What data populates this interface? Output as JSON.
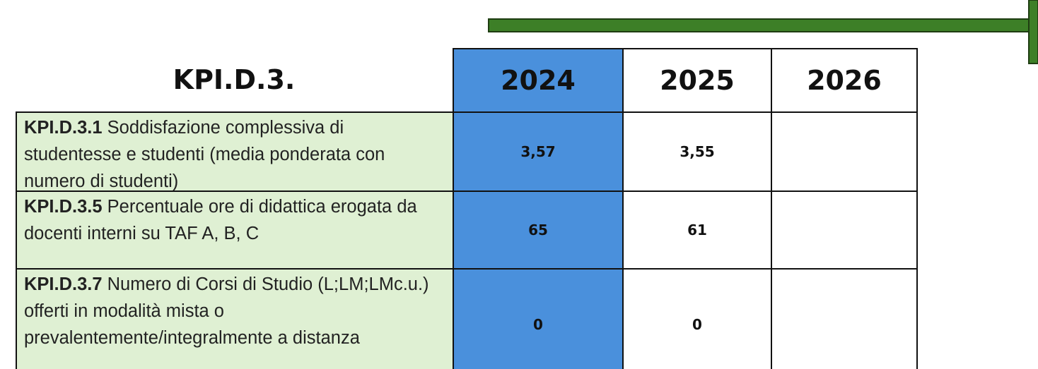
{
  "header": {
    "title": "KPI.D.3.",
    "years": [
      "2024",
      "2025",
      "2026"
    ]
  },
  "rows": [
    {
      "code": "KPI.D.3.1",
      "text": "Soddisfazione complessiva di studentesse e studenti (media ponderata con numero di studenti)",
      "values": [
        "3,57",
        "3,55"
      ]
    },
    {
      "code": "KPI.D.3.5",
      "text": "Percentuale ore di didattica erogata da docenti interni su TAF A, B, C",
      "values": [
        65,
        61
      ]
    },
    {
      "code": "KPI.D.3.7",
      "text": "Numero di Corsi di Studio (L;LM;LMc.u.) offerti in modalità mista o prevalentemente/integralmente a distanza",
      "values": [
        0,
        0
      ]
    }
  ]
}
